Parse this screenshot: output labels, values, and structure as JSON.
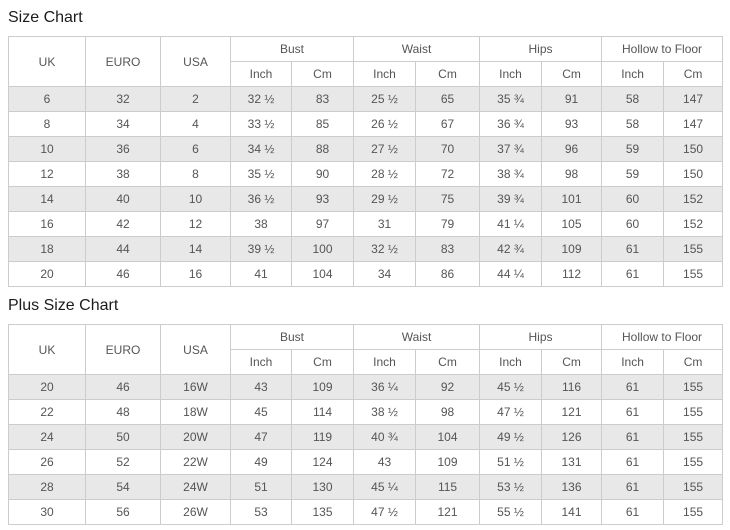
{
  "colors": {
    "border": "#cccccc",
    "stripe_row_bg": "#e8e8e8",
    "plain_row_bg": "#ffffff",
    "cell_text": "#555555",
    "title_text": "#1c1c1c"
  },
  "tables": [
    {
      "title": "Size Chart",
      "size_columns": [
        "UK",
        "EURO",
        "USA"
      ],
      "measure_groups": [
        "Bust",
        "Waist",
        "Hips",
        "Hollow to Floor"
      ],
      "unit_subheaders": [
        "Inch",
        "Cm",
        "Inch",
        "Cm",
        "Inch",
        "Cm",
        "Inch",
        "Cm"
      ],
      "rows": [
        [
          "6",
          "32",
          "2",
          "32 ½",
          "83",
          "25 ½",
          "65",
          "35 ¾",
          "91",
          "58",
          "147"
        ],
        [
          "8",
          "34",
          "4",
          "33 ½",
          "85",
          "26 ½",
          "67",
          "36 ¾",
          "93",
          "58",
          "147"
        ],
        [
          "10",
          "36",
          "6",
          "34 ½",
          "88",
          "27 ½",
          "70",
          "37 ¾",
          "96",
          "59",
          "150"
        ],
        [
          "12",
          "38",
          "8",
          "35 ½",
          "90",
          "28 ½",
          "72",
          "38 ¾",
          "98",
          "59",
          "150"
        ],
        [
          "14",
          "40",
          "10",
          "36 ½",
          "93",
          "29 ½",
          "75",
          "39 ¾",
          "101",
          "60",
          "152"
        ],
        [
          "16",
          "42",
          "12",
          "38",
          "97",
          "31",
          "79",
          "41 ¼",
          "105",
          "60",
          "152"
        ],
        [
          "18",
          "44",
          "14",
          "39 ½",
          "100",
          "32 ½",
          "83",
          "42 ¾",
          "109",
          "61",
          "155"
        ],
        [
          "20",
          "46",
          "16",
          "41",
          "104",
          "34",
          "86",
          "44 ¼",
          "112",
          "61",
          "155"
        ]
      ]
    },
    {
      "title": "Plus Size Chart",
      "size_columns": [
        "UK",
        "EURO",
        "USA"
      ],
      "measure_groups": [
        "Bust",
        "Waist",
        "Hips",
        "Hollow to Floor"
      ],
      "unit_subheaders": [
        "Inch",
        "Cm",
        "Inch",
        "Cm",
        "Inch",
        "Cm",
        "Inch",
        "Cm"
      ],
      "rows": [
        [
          "20",
          "46",
          "16W",
          "43",
          "109",
          "36 ¼",
          "92",
          "45 ½",
          "116",
          "61",
          "155"
        ],
        [
          "22",
          "48",
          "18W",
          "45",
          "114",
          "38 ½",
          "98",
          "47 ½",
          "121",
          "61",
          "155"
        ],
        [
          "24",
          "50",
          "20W",
          "47",
          "119",
          "40 ¾",
          "104",
          "49 ½",
          "126",
          "61",
          "155"
        ],
        [
          "26",
          "52",
          "22W",
          "49",
          "124",
          "43",
          "109",
          "51 ½",
          "131",
          "61",
          "155"
        ],
        [
          "28",
          "54",
          "24W",
          "51",
          "130",
          "45 ¼",
          "115",
          "53 ½",
          "136",
          "61",
          "155"
        ],
        [
          "30",
          "56",
          "26W",
          "53",
          "135",
          "47 ½",
          "121",
          "55 ½",
          "141",
          "61",
          "155"
        ]
      ]
    }
  ]
}
